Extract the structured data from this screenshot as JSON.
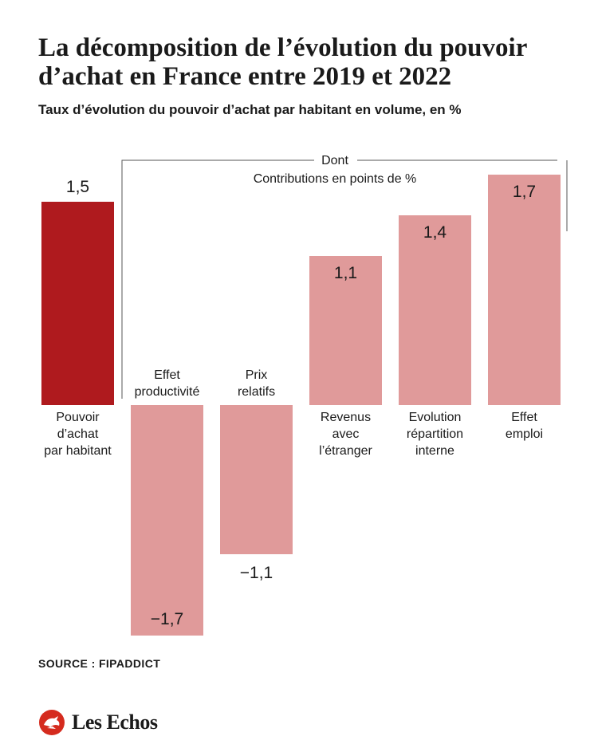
{
  "header": {
    "title": "La décomposition de l’évolution du pouvoir d’achat en France entre 2019 et 2022",
    "subtitle": "Taux d’évolution du pouvoir d’achat par habitant en volume, en %"
  },
  "bracket": {
    "line1": "Dont",
    "line2": "Contributions en points de %"
  },
  "chart_data": {
    "type": "bar",
    "title": "La décomposition de l’évolution du pouvoir d’achat en France entre 2019 et 2022",
    "subtitle": "Taux d’évolution du pouvoir d’achat par habitant en volume, en %",
    "categories": [
      "Pouvoir d’achat par habitant",
      "Effet productivité",
      "Prix relatifs",
      "Revenus avec l’étranger",
      "Evolution répartition interne",
      "Effet emploi"
    ],
    "category_lines": [
      [
        "Pouvoir",
        "d’achat",
        "par habitant"
      ],
      [
        "Effet",
        "productivité"
      ],
      [
        "Prix",
        "relatifs"
      ],
      [
        "Revenus",
        "avec",
        "l’étranger"
      ],
      [
        "Evolution",
        "répartition",
        "interne"
      ],
      [
        "Effet",
        "emploi"
      ]
    ],
    "values": [
      1.5,
      -1.7,
      -1.1,
      1.1,
      1.4,
      1.7
    ],
    "value_labels": [
      "1,5",
      "−1,7",
      "−1,1",
      "1,1",
      "1,4",
      "1,7"
    ],
    "colors": [
      "#af1a1e",
      "#e09a9a",
      "#e09a9a",
      "#e09a9a",
      "#e09a9a",
      "#e09a9a"
    ],
    "xlabel": "",
    "ylabel": "",
    "grid": false,
    "legend": "none"
  },
  "footer": {
    "source": "SOURCE : FIPADDICT",
    "brand": "Les Echos",
    "brand_color": "#d52b1e",
    "brand_icon": "les-echos-logo-icon"
  }
}
